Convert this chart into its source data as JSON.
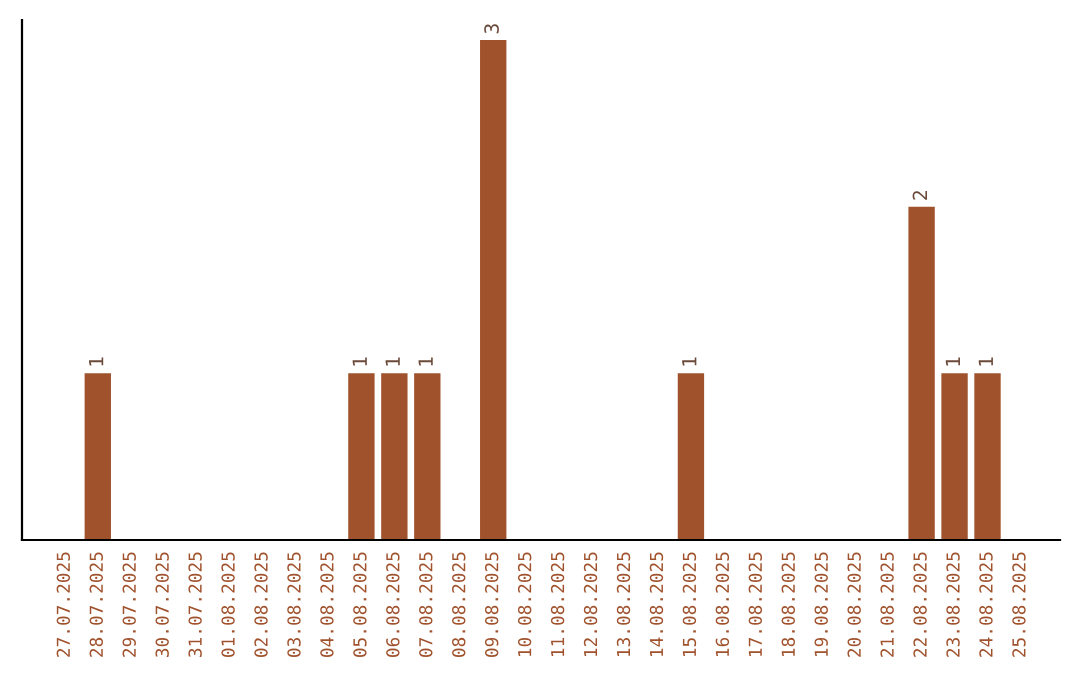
{
  "chart_data": {
    "type": "bar",
    "categories": [
      "27.07.2025",
      "28.07.2025",
      "29.07.2025",
      "30.07.2025",
      "31.07.2025",
      "01.08.2025",
      "02.08.2025",
      "03.08.2025",
      "04.08.2025",
      "05.08.2025",
      "06.08.2025",
      "07.08.2025",
      "08.08.2025",
      "09.08.2025",
      "10.08.2025",
      "11.08.2025",
      "12.08.2025",
      "13.08.2025",
      "14.08.2025",
      "15.08.2025",
      "16.08.2025",
      "17.08.2025",
      "18.08.2025",
      "19.08.2025",
      "20.08.2025",
      "21.08.2025",
      "22.08.2025",
      "23.08.2025",
      "24.08.2025",
      "25.08.2025"
    ],
    "values": [
      0,
      1,
      0,
      0,
      0,
      0,
      0,
      0,
      0,
      1,
      1,
      1,
      0,
      3,
      0,
      0,
      0,
      0,
      0,
      1,
      0,
      0,
      0,
      0,
      0,
      0,
      2,
      1,
      1,
      0
    ],
    "value_labels": [
      null,
      "1",
      null,
      null,
      null,
      null,
      null,
      null,
      null,
      "1",
      "1",
      "1",
      null,
      "3",
      null,
      null,
      null,
      null,
      null,
      "1",
      null,
      null,
      null,
      null,
      null,
      null,
      "2",
      "1",
      "1",
      null
    ],
    "color": "#a0522d",
    "tick_labels": "x",
    "grid": false
  }
}
